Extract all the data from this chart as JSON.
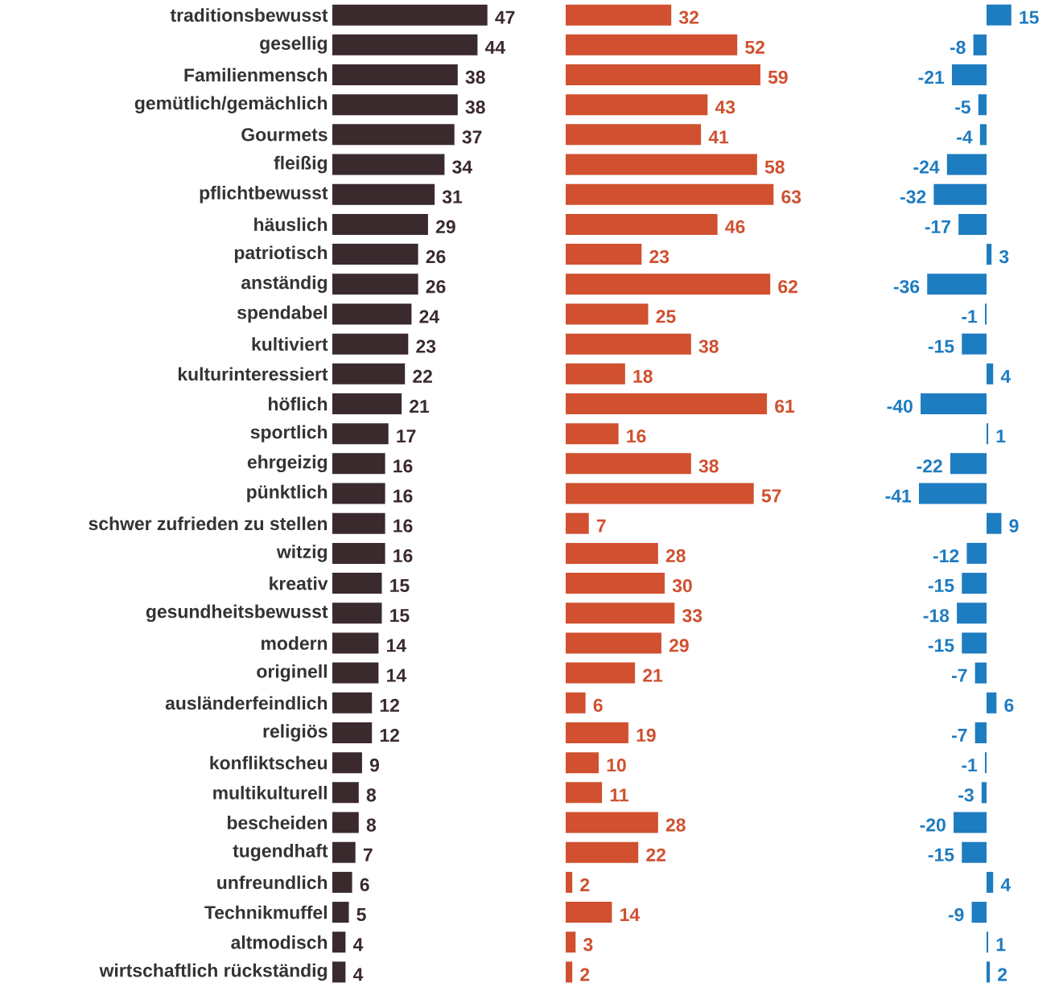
{
  "chart_data": [
    {
      "type": "bar",
      "orientation": "horizontal",
      "color": "#3a2a2e",
      "tick_labels": "y",
      "data_labels": true,
      "categories": [
        "traditionsbewusst",
        "gesellig",
        "Familienmensch",
        "gemütlich/gemächlich",
        "Gourmets",
        "fleißig",
        "pflichtbewusst",
        "häuslich",
        "patriotisch",
        "anständig",
        "spendabel",
        "kultiviert",
        "kulturinteressiert",
        "höflich",
        "sportlich",
        "ehrgeizig",
        "pünktlich",
        "schwer zufrieden zu stellen",
        "witzig",
        "kreativ",
        "gesundheitsbewusst",
        "modern",
        "originell",
        "ausländerfeindlich",
        "religiös",
        "konfliktscheu",
        "multikulturell",
        "bescheiden",
        "tugendhaft",
        "unfreundlich",
        "Technikmuffel",
        "altmodisch",
        "wirtschaftlich rückständig"
      ],
      "values": [
        47,
        44,
        38,
        38,
        37,
        34,
        31,
        29,
        26,
        26,
        24,
        23,
        22,
        21,
        17,
        16,
        16,
        16,
        16,
        15,
        15,
        14,
        14,
        12,
        12,
        9,
        8,
        8,
        7,
        6,
        5,
        4,
        4
      ]
    },
    {
      "type": "bar",
      "orientation": "horizontal",
      "color": "#d0502f",
      "tick_labels": false,
      "data_labels": true,
      "categories": [
        null,
        null,
        null,
        null,
        null,
        null,
        null,
        null,
        null,
        null,
        null,
        null,
        null,
        null,
        null,
        null,
        null,
        null,
        null,
        null,
        null,
        null,
        null,
        null,
        null,
        null,
        null,
        null,
        null,
        null,
        null,
        null,
        null
      ],
      "values": [
        32,
        52,
        59,
        43,
        41,
        58,
        63,
        46,
        23,
        62,
        25,
        38,
        18,
        61,
        16,
        38,
        57,
        7,
        28,
        30,
        33,
        29,
        21,
        6,
        19,
        10,
        11,
        28,
        22,
        2,
        14,
        3,
        2
      ]
    },
    {
      "type": "bar",
      "orientation": "horizontal",
      "color": "#1e7cc1",
      "tick_labels": false,
      "data_labels": true,
      "categories": [
        null,
        null,
        null,
        null,
        null,
        null,
        null,
        null,
        null,
        null,
        null,
        null,
        null,
        null,
        null,
        null,
        null,
        null,
        null,
        null,
        null,
        null,
        null,
        null,
        null,
        null,
        null,
        null,
        null,
        null,
        null,
        null,
        null
      ],
      "values": [
        15,
        -8,
        -21,
        -5,
        -4,
        -24,
        -32,
        -17,
        3,
        -36,
        -1,
        -15,
        4,
        -40,
        1,
        -22,
        -41,
        9,
        -12,
        -15,
        -18,
        -15,
        -7,
        6,
        -7,
        -1,
        -3,
        -20,
        -15,
        4,
        -9,
        1,
        2
      ]
    }
  ]
}
